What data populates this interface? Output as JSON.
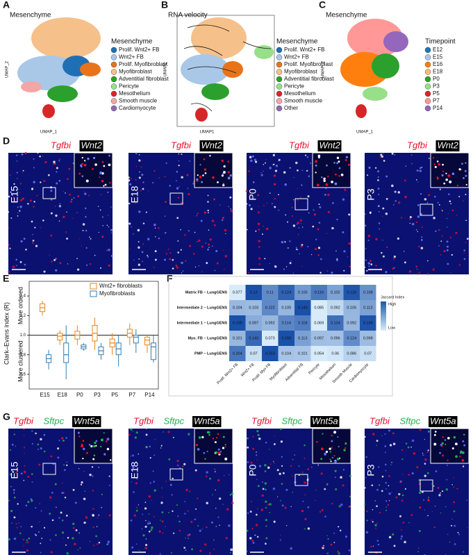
{
  "panels": {
    "A": {
      "letter": "A",
      "title": "Mesenchyme",
      "x_label": "UMAP_1",
      "y_label": "UMAP_2",
      "legend_title": "Mesenchyme",
      "legend": [
        {
          "name": "Prolif. Wnt2+ FB",
          "color": "#1f6fb4"
        },
        {
          "name": "Wnt2+ FB",
          "color": "#a9c8e8"
        },
        {
          "name": "Prolif. Myofibroblast",
          "color": "#e8731a"
        },
        {
          "name": "Myofibroblast",
          "color": "#f6c08a"
        },
        {
          "name": "Adventitial fibroblast",
          "color": "#2ca02c"
        },
        {
          "name": "Pericyte",
          "color": "#98df8a"
        },
        {
          "name": "Mesothelium",
          "color": "#d62728"
        },
        {
          "name": "Smooth muscle",
          "color": "#f4a6a6"
        },
        {
          "name": "Cardiomyocyte",
          "color": "#8c6bb1"
        }
      ]
    },
    "B": {
      "letter": "B",
      "title": "RNA velocity",
      "x_label": "UMAP1",
      "y_label": "UMAP2",
      "legend_title": "Mesenchyme",
      "legend": [
        {
          "name": "Prolif. Wnt2+ FB",
          "color": "#1f6fb4"
        },
        {
          "name": "Wnt2+ FB",
          "color": "#a9c8e8"
        },
        {
          "name": "Prolif. Myofibroblast",
          "color": "#e8731a"
        },
        {
          "name": "Myofibroblast",
          "color": "#f6c08a"
        },
        {
          "name": "Adventitial fibroblast",
          "color": "#2ca02c"
        },
        {
          "name": "Pericyte",
          "color": "#98df8a"
        },
        {
          "name": "Mesothelium",
          "color": "#d62728"
        },
        {
          "name": "Smooth muscle",
          "color": "#f4a6a6"
        },
        {
          "name": "Other",
          "color": "#8c6bb1"
        }
      ]
    },
    "C": {
      "letter": "C",
      "title": "Mesenchyme",
      "x_label": "UMAP_1",
      "y_label": "UMAP_2",
      "legend_title": "Timepoint",
      "legend": [
        {
          "name": "E12",
          "color": "#1f77b4"
        },
        {
          "name": "E15",
          "color": "#aec7e8"
        },
        {
          "name": "E16",
          "color": "#ff7f0e"
        },
        {
          "name": "E18",
          "color": "#ffbb78"
        },
        {
          "name": "P0",
          "color": "#2ca02c"
        },
        {
          "name": "P3",
          "color": "#98df8a"
        },
        {
          "name": "P5",
          "color": "#d62728"
        },
        {
          "name": "P7",
          "color": "#ff9896"
        },
        {
          "name": "P14",
          "color": "#9467bd"
        }
      ]
    },
    "D": {
      "letter": "D",
      "markers": [
        "Tgfbi",
        "Wnt2"
      ],
      "images": [
        "E15",
        "E18",
        "P0",
        "P3"
      ]
    },
    "E": {
      "letter": "E",
      "type": "box",
      "y_label": "Clark–Evans index (R)",
      "annotations": [
        "More ordered",
        "More clustered"
      ],
      "categories": [
        "E15",
        "E18",
        "P0",
        "P3",
        "P5",
        "P7",
        "P14"
      ],
      "ylim": [
        0.45,
        1.55
      ],
      "yticks": [
        0.6,
        0.8,
        {
          "value": 1,
          "label": "1.0"
        },
        1.2,
        1.4
      ],
      "reference_line": 1,
      "series": [
        {
          "name": "Wnt2+ fibroblasts",
          "color": "#e8861a",
          "whisker_low": [
            1.2,
            0.9,
            0.9,
            0.85,
            0.8,
            0.9,
            0.82
          ],
          "q1": [
            1.24,
            0.95,
            0.96,
            0.94,
            0.88,
            0.98,
            0.9
          ],
          "median": [
            1.28,
            0.99,
            1.0,
            1.02,
            0.92,
            1.02,
            0.95
          ],
          "q3": [
            1.32,
            1.02,
            1.04,
            1.1,
            0.96,
            1.06,
            0.98
          ],
          "whisker_high": [
            1.35,
            1.05,
            1.1,
            1.18,
            1.02,
            1.12,
            1.0
          ]
        },
        {
          "name": "Myofibroblasts",
          "color": "#2f7fb8",
          "whisker_low": [
            0.65,
            0.55,
            0.84,
            0.75,
            0.68,
            0.82,
            0.72
          ],
          "q1": [
            0.72,
            0.72,
            0.86,
            0.8,
            0.8,
            0.92,
            0.75
          ],
          "median": [
            0.76,
            0.8,
            0.88,
            0.84,
            0.86,
            0.98,
            0.88
          ],
          "q3": [
            0.8,
            0.92,
            0.9,
            0.88,
            0.92,
            1.0,
            0.92
          ],
          "whisker_high": [
            0.85,
            1.1,
            0.92,
            0.92,
            1.0,
            1.06,
            1.0
          ]
        }
      ]
    },
    "F": {
      "letter": "F",
      "type": "heatmap",
      "colorbar_title": "Jaccard Index",
      "colorbar_labels": [
        "High",
        "Low"
      ],
      "rows": [
        "Matrix FB – LungGENS",
        "Intermediate 2 – LungGENS",
        "Intermediate 1 – LungGENS",
        "Myo. FB – LungGENS",
        "PMP – LungGENS"
      ],
      "columns": [
        "Prolif. Wnt2+ FB",
        "Wnt2+ FB",
        "Prolif. Myo FB",
        "Myofibroblast",
        "Adventitial FB",
        "Pericyte",
        "Mesothelium",
        "Smooth Muscle",
        "Cardiomyocyte"
      ],
      "values": [
        [
          0.077,
          0.13,
          0.11,
          0.124,
          0.105,
          0.116,
          0.102,
          0.128,
          0.108
        ],
        [
          0.104,
          0.103,
          0.122,
          0.105,
          0.143,
          0.085,
          0.092,
          0.105,
          0.113
        ],
        [
          0.138,
          0.097,
          0.092,
          0.114,
          0.118,
          0.069,
          0.124,
          0.092,
          0.136
        ],
        [
          0.101,
          0.143,
          0.073,
          0.156,
          0.113,
          0.097,
          0.096,
          0.124,
          0.098
        ],
        [
          0.204,
          0.07,
          0.253,
          0.104,
          0.101,
          0.054,
          0.06,
          0.086,
          0.07
        ]
      ]
    },
    "G": {
      "letter": "G",
      "markers": [
        "Tgfbi",
        "Sftpc",
        "Wnt5a"
      ],
      "images": [
        "E15",
        "E18",
        "P0",
        "P3"
      ]
    }
  }
}
